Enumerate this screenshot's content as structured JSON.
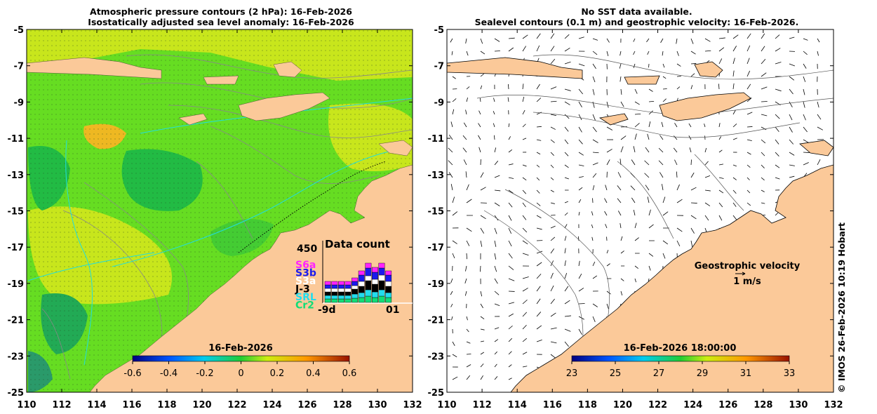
{
  "left_panel": {
    "title_line1": "Atmospheric pressure contours (2 hPa): 16-Feb-2026",
    "title_line2": "Isostatically adjusted sea level anomaly: 16-Feb-2026",
    "lat_ticks": [
      "-5",
      "-7",
      "-9",
      "-11",
      "-13",
      "-15",
      "-17",
      "-19",
      "-21",
      "-23",
      "-25"
    ],
    "lon_ticks": [
      "110",
      "112",
      "114",
      "116",
      "118",
      "120",
      "122",
      "124",
      "126",
      "128",
      "130",
      "132"
    ],
    "colorbar": {
      "date": "16-Feb-2026",
      "tick_labels": [
        "-0.6",
        "-0.4",
        "-0.2",
        "0",
        "0.2",
        "0.4",
        "0.6"
      ]
    },
    "data_count": {
      "title": "Data count",
      "max_label": "450",
      "start_label": "-9d",
      "end_label": "01",
      "satellites": [
        {
          "name": "S6a",
          "color": "#ff22ff"
        },
        {
          "name": "S3b",
          "color": "#1a1aee"
        },
        {
          "name": "S3a",
          "color": "#ffffff"
        },
        {
          "name": "J-3",
          "color": "#000000"
        },
        {
          "name": "SRL",
          "color": "#22ddee"
        },
        {
          "name": "Cr2",
          "color": "#11dd77"
        }
      ]
    }
  },
  "right_panel": {
    "title_line1": "No SST data available.",
    "title_line2": "Sealevel contours (0.1 m) and geostrophic velocity: 16-Feb-2026.",
    "lat_ticks": [
      "-5",
      "-7",
      "-9",
      "-11",
      "-13",
      "-15",
      "-17",
      "-19",
      "-21",
      "-23",
      "-25"
    ],
    "lon_ticks": [
      "110",
      "112",
      "114",
      "116",
      "118",
      "120",
      "122",
      "124",
      "126",
      "128",
      "130",
      "132"
    ],
    "velocity_legend": {
      "title": "Geostrophic velocity",
      "scale": "1 m/s"
    },
    "colorbar": {
      "date": "16-Feb-2026 18:00:00",
      "tick_labels": [
        "23",
        "25",
        "27",
        "29",
        "31",
        "33"
      ]
    }
  },
  "credit": "© IMOS 26-Feb-2026 10:19 Hobart",
  "colors": {
    "land": "#fbc999",
    "ocean_green": "#66dd22",
    "ocean_yellow": "#c8e61c",
    "anomaly_dark": "#22bb44",
    "contour": "#888888",
    "track": "#22dddd"
  }
}
